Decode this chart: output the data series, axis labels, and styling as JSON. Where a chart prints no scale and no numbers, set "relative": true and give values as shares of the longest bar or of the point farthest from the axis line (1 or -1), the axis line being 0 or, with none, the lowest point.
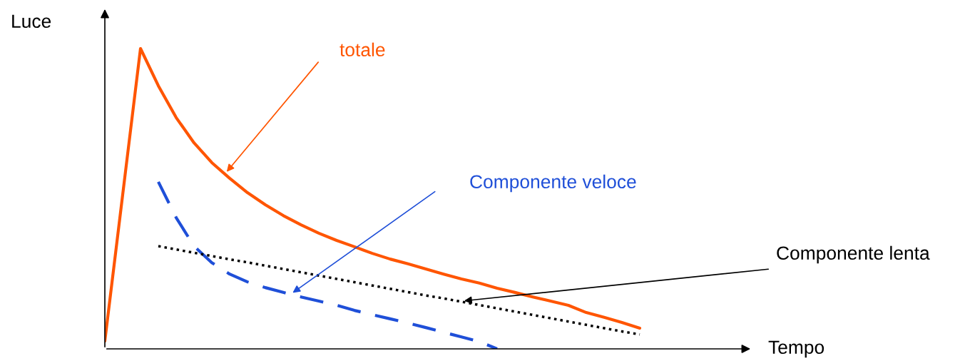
{
  "chart_data": {
    "type": "line",
    "relative": true,
    "xlabel": "Tempo",
    "ylabel": "Luce",
    "legend": false,
    "categories": [
      null,
      null,
      null,
      null,
      null,
      null,
      null,
      null,
      null,
      null,
      null,
      null,
      null,
      null,
      null,
      null,
      null,
      null,
      null,
      null,
      null,
      null,
      null,
      null,
      null,
      null,
      null,
      null,
      null,
      null,
      null,
      null,
      null,
      null,
      null,
      null,
      null
    ],
    "series": [
      {
        "name": "totale",
        "color": "#ff5500",
        "line_style": "solid",
        "values": [
          0.026,
          0.513,
          1.0,
          0.876,
          0.77,
          0.686,
          0.62,
          0.568,
          0.52,
          0.48,
          0.444,
          0.413,
          0.385,
          0.361,
          0.34,
          0.318,
          0.299,
          0.283,
          0.266,
          0.249,
          0.233,
          0.219,
          0.202,
          0.188,
          0.173,
          0.159,
          0.145,
          0.121,
          0.105,
          0.088,
          0.069,
          null,
          null,
          null,
          null,
          null,
          null
        ]
      },
      {
        "name": "Componente veloce",
        "color": "#1f4fd8",
        "line_style": "dashed",
        "values": [
          null,
          null,
          null,
          0.556,
          0.437,
          0.342,
          0.287,
          0.249,
          0.223,
          0.204,
          0.188,
          0.173,
          0.159,
          0.145,
          0.128,
          0.114,
          0.1,
          0.086,
          0.071,
          0.055,
          0.04,
          0.024,
          0.0,
          null,
          null,
          null,
          null,
          null,
          null,
          null,
          null,
          null,
          null,
          null,
          null,
          null,
          null
        ]
      },
      {
        "name": "Componente lenta",
        "color": "#000000",
        "line_style": "dotted",
        "values": [
          null,
          null,
          null,
          0.342,
          0.331,
          0.32,
          0.309,
          0.298,
          0.288,
          0.277,
          0.266,
          0.255,
          0.244,
          0.233,
          0.222,
          0.211,
          0.2,
          0.189,
          0.178,
          0.168,
          0.157,
          0.146,
          0.135,
          0.124,
          0.113,
          0.102,
          0.091,
          0.08,
          0.069,
          0.058,
          0.048,
          null,
          null,
          null,
          null,
          null,
          null
        ]
      }
    ]
  }
}
